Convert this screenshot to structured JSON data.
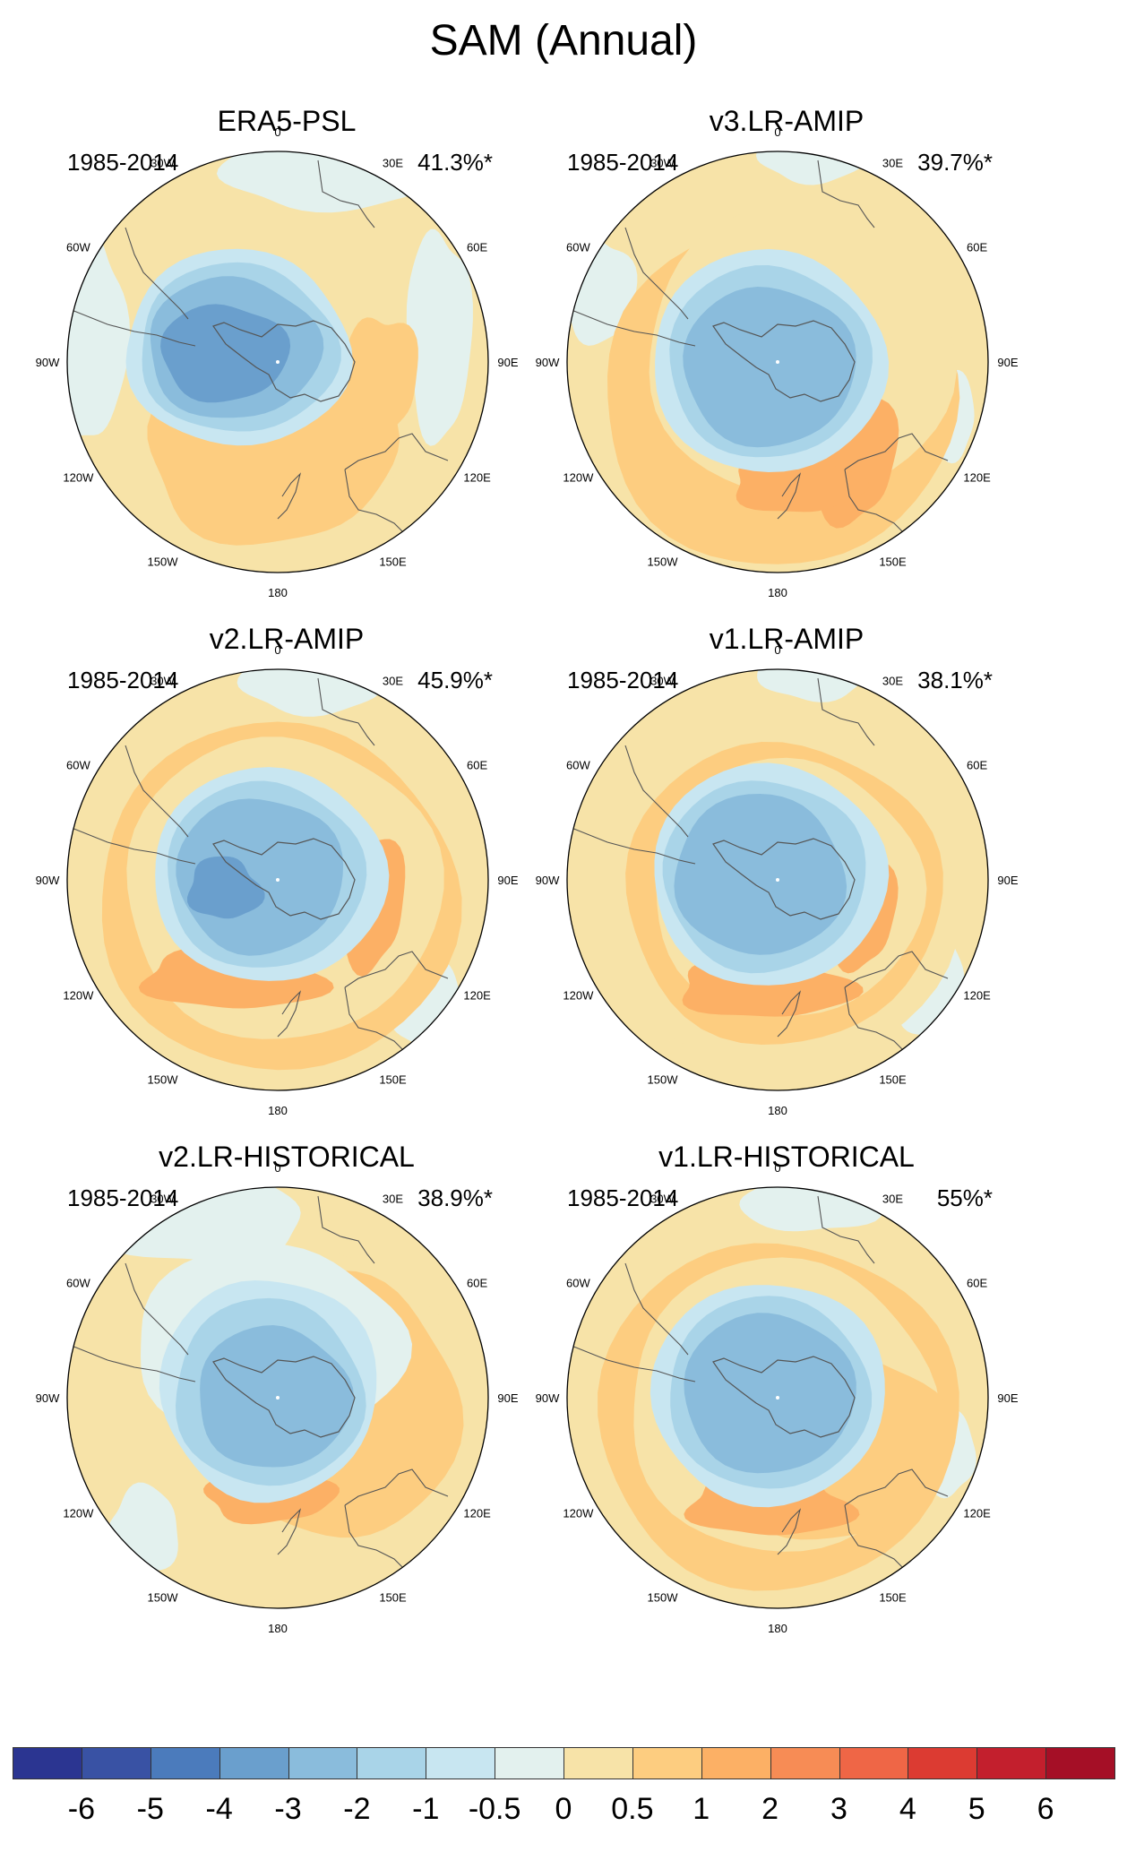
{
  "title": "SAM (Annual)",
  "panels": [
    {
      "name": "ERA5-PSL",
      "period": "1985-2014",
      "percent": "41.3%*"
    },
    {
      "name": "v3.LR-AMIP",
      "period": "1985-2014",
      "percent": "39.7%*"
    },
    {
      "name": "v2.LR-AMIP",
      "period": "1985-2014",
      "percent": "45.9%*"
    },
    {
      "name": "v1.LR-AMIP",
      "period": "1985-2014",
      "percent": "38.1%*"
    },
    {
      "name": "v2.LR-HISTORICAL",
      "period": "1985-2014",
      "percent": "38.9%*"
    },
    {
      "name": "v1.LR-HISTORICAL",
      "period": "1985-2014",
      "percent": "55%*"
    }
  ],
  "longitude_labels": [
    "0",
    "30E",
    "60E",
    "90E",
    "120E",
    "150E",
    "180",
    "150W",
    "120W",
    "90W",
    "60W",
    "30W"
  ],
  "colorbar": {
    "labels": [
      "-6",
      "-5",
      "-4",
      "-3",
      "-2",
      "-1",
      "-0.5",
      "0",
      "0.5",
      "1",
      "2",
      "3",
      "4",
      "5",
      "6"
    ],
    "colors": [
      "#2b3591",
      "#3952a4",
      "#4b7bbc",
      "#6a9fcd",
      "#8abcdc",
      "#a9d4e8",
      "#c8e6f1",
      "#e3f1ee",
      "#f7e3a8",
      "#fdcd80",
      "#fcb065",
      "#f78c55",
      "#ef6646",
      "#dc3b32",
      "#c31f2d",
      "#a50f26"
    ]
  }
}
